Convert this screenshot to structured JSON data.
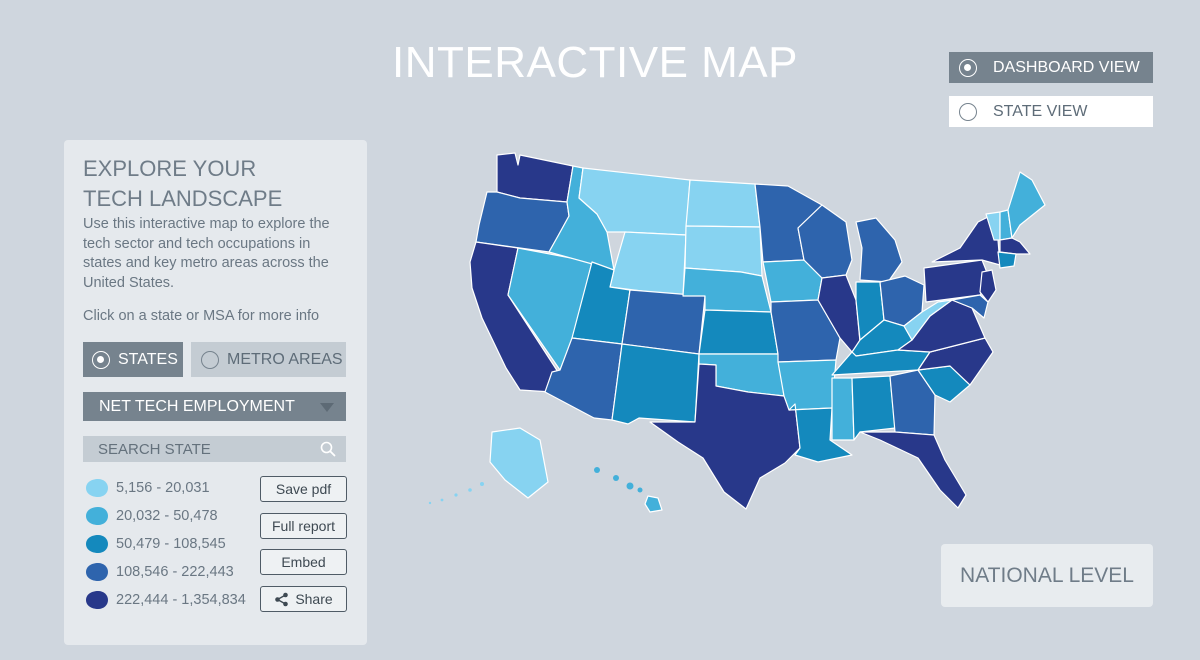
{
  "title": "INTERACTIVE MAP",
  "views": {
    "dashboard_label": "DASHBOARD VIEW",
    "state_label": "STATE VIEW",
    "selected": "dashboard"
  },
  "panel": {
    "title": "EXPLORE YOUR TECH LANDSCAPE",
    "description": "Use this interactive map to explore the tech sector and tech occupations in states and key metro areas across the United States.",
    "hint": "Click on a state or MSA for more info",
    "toggle_states": "STATES",
    "toggle_metro": "METRO AREAS",
    "toggle_selected": "states",
    "metric_select": "NET TECH EMPLOYMENT",
    "search_placeholder": "SEARCH STATE",
    "search_icon": "search-icon"
  },
  "legend": {
    "ranges": [
      {
        "label": "5,156 - 20,031",
        "color": "#87d3f1"
      },
      {
        "label": "20,032 - 50,478",
        "color": "#43b0da"
      },
      {
        "label": "50,479 - 108,545",
        "color": "#1489bd"
      },
      {
        "label": "108,546 - 222,443",
        "color": "#2e64ad"
      },
      {
        "label": "222,444 - 1,354,834",
        "color": "#28388a"
      }
    ]
  },
  "actions": {
    "save_pdf": "Save pdf",
    "full_report": "Full report",
    "embed": "Embed",
    "share": "Share",
    "share_icon": "share-icon"
  },
  "national_label": "NATIONAL LEVEL",
  "map": {
    "colors": {
      "c1": "#87d3f1",
      "c2": "#43b0da",
      "c3": "#1489bd",
      "c4": "#2e64ad",
      "c5": "#28388a"
    },
    "states": [
      {
        "id": "WA",
        "tier": 5
      },
      {
        "id": "OR",
        "tier": 4
      },
      {
        "id": "CA",
        "tier": 5
      },
      {
        "id": "NV",
        "tier": 2
      },
      {
        "id": "ID",
        "tier": 2
      },
      {
        "id": "MT",
        "tier": 1
      },
      {
        "id": "WY",
        "tier": 1
      },
      {
        "id": "UT",
        "tier": 3
      },
      {
        "id": "AZ",
        "tier": 4
      },
      {
        "id": "CO",
        "tier": 4
      },
      {
        "id": "NM",
        "tier": 3
      },
      {
        "id": "ND",
        "tier": 1
      },
      {
        "id": "SD",
        "tier": 1
      },
      {
        "id": "NE",
        "tier": 2
      },
      {
        "id": "KS",
        "tier": 3
      },
      {
        "id": "OK",
        "tier": 2
      },
      {
        "id": "TX",
        "tier": 5
      },
      {
        "id": "MN",
        "tier": 4
      },
      {
        "id": "IA",
        "tier": 2
      },
      {
        "id": "MO",
        "tier": 4
      },
      {
        "id": "AR",
        "tier": 2
      },
      {
        "id": "LA",
        "tier": 3
      },
      {
        "id": "WI",
        "tier": 4
      },
      {
        "id": "IL",
        "tier": 5
      },
      {
        "id": "MI",
        "tier": 4
      },
      {
        "id": "IN",
        "tier": 3
      },
      {
        "id": "OH",
        "tier": 4
      },
      {
        "id": "KY",
        "tier": 3
      },
      {
        "id": "TN",
        "tier": 3
      },
      {
        "id": "MS",
        "tier": 2
      },
      {
        "id": "AL",
        "tier": 3
      },
      {
        "id": "GA",
        "tier": 4
      },
      {
        "id": "FL",
        "tier": 5
      },
      {
        "id": "SC",
        "tier": 3
      },
      {
        "id": "NC",
        "tier": 5
      },
      {
        "id": "VA",
        "tier": 5
      },
      {
        "id": "WV",
        "tier": 1
      },
      {
        "id": "PA",
        "tier": 5
      },
      {
        "id": "NY",
        "tier": 5
      },
      {
        "id": "VT",
        "tier": 1
      },
      {
        "id": "NH",
        "tier": 2
      },
      {
        "id": "ME",
        "tier": 2
      },
      {
        "id": "MA",
        "tier": 5
      },
      {
        "id": "CT",
        "tier": 3
      },
      {
        "id": "NJ",
        "tier": 5
      },
      {
        "id": "MD",
        "tier": 4
      },
      {
        "id": "AK",
        "tier": 1
      },
      {
        "id": "HI",
        "tier": 2
      }
    ]
  }
}
